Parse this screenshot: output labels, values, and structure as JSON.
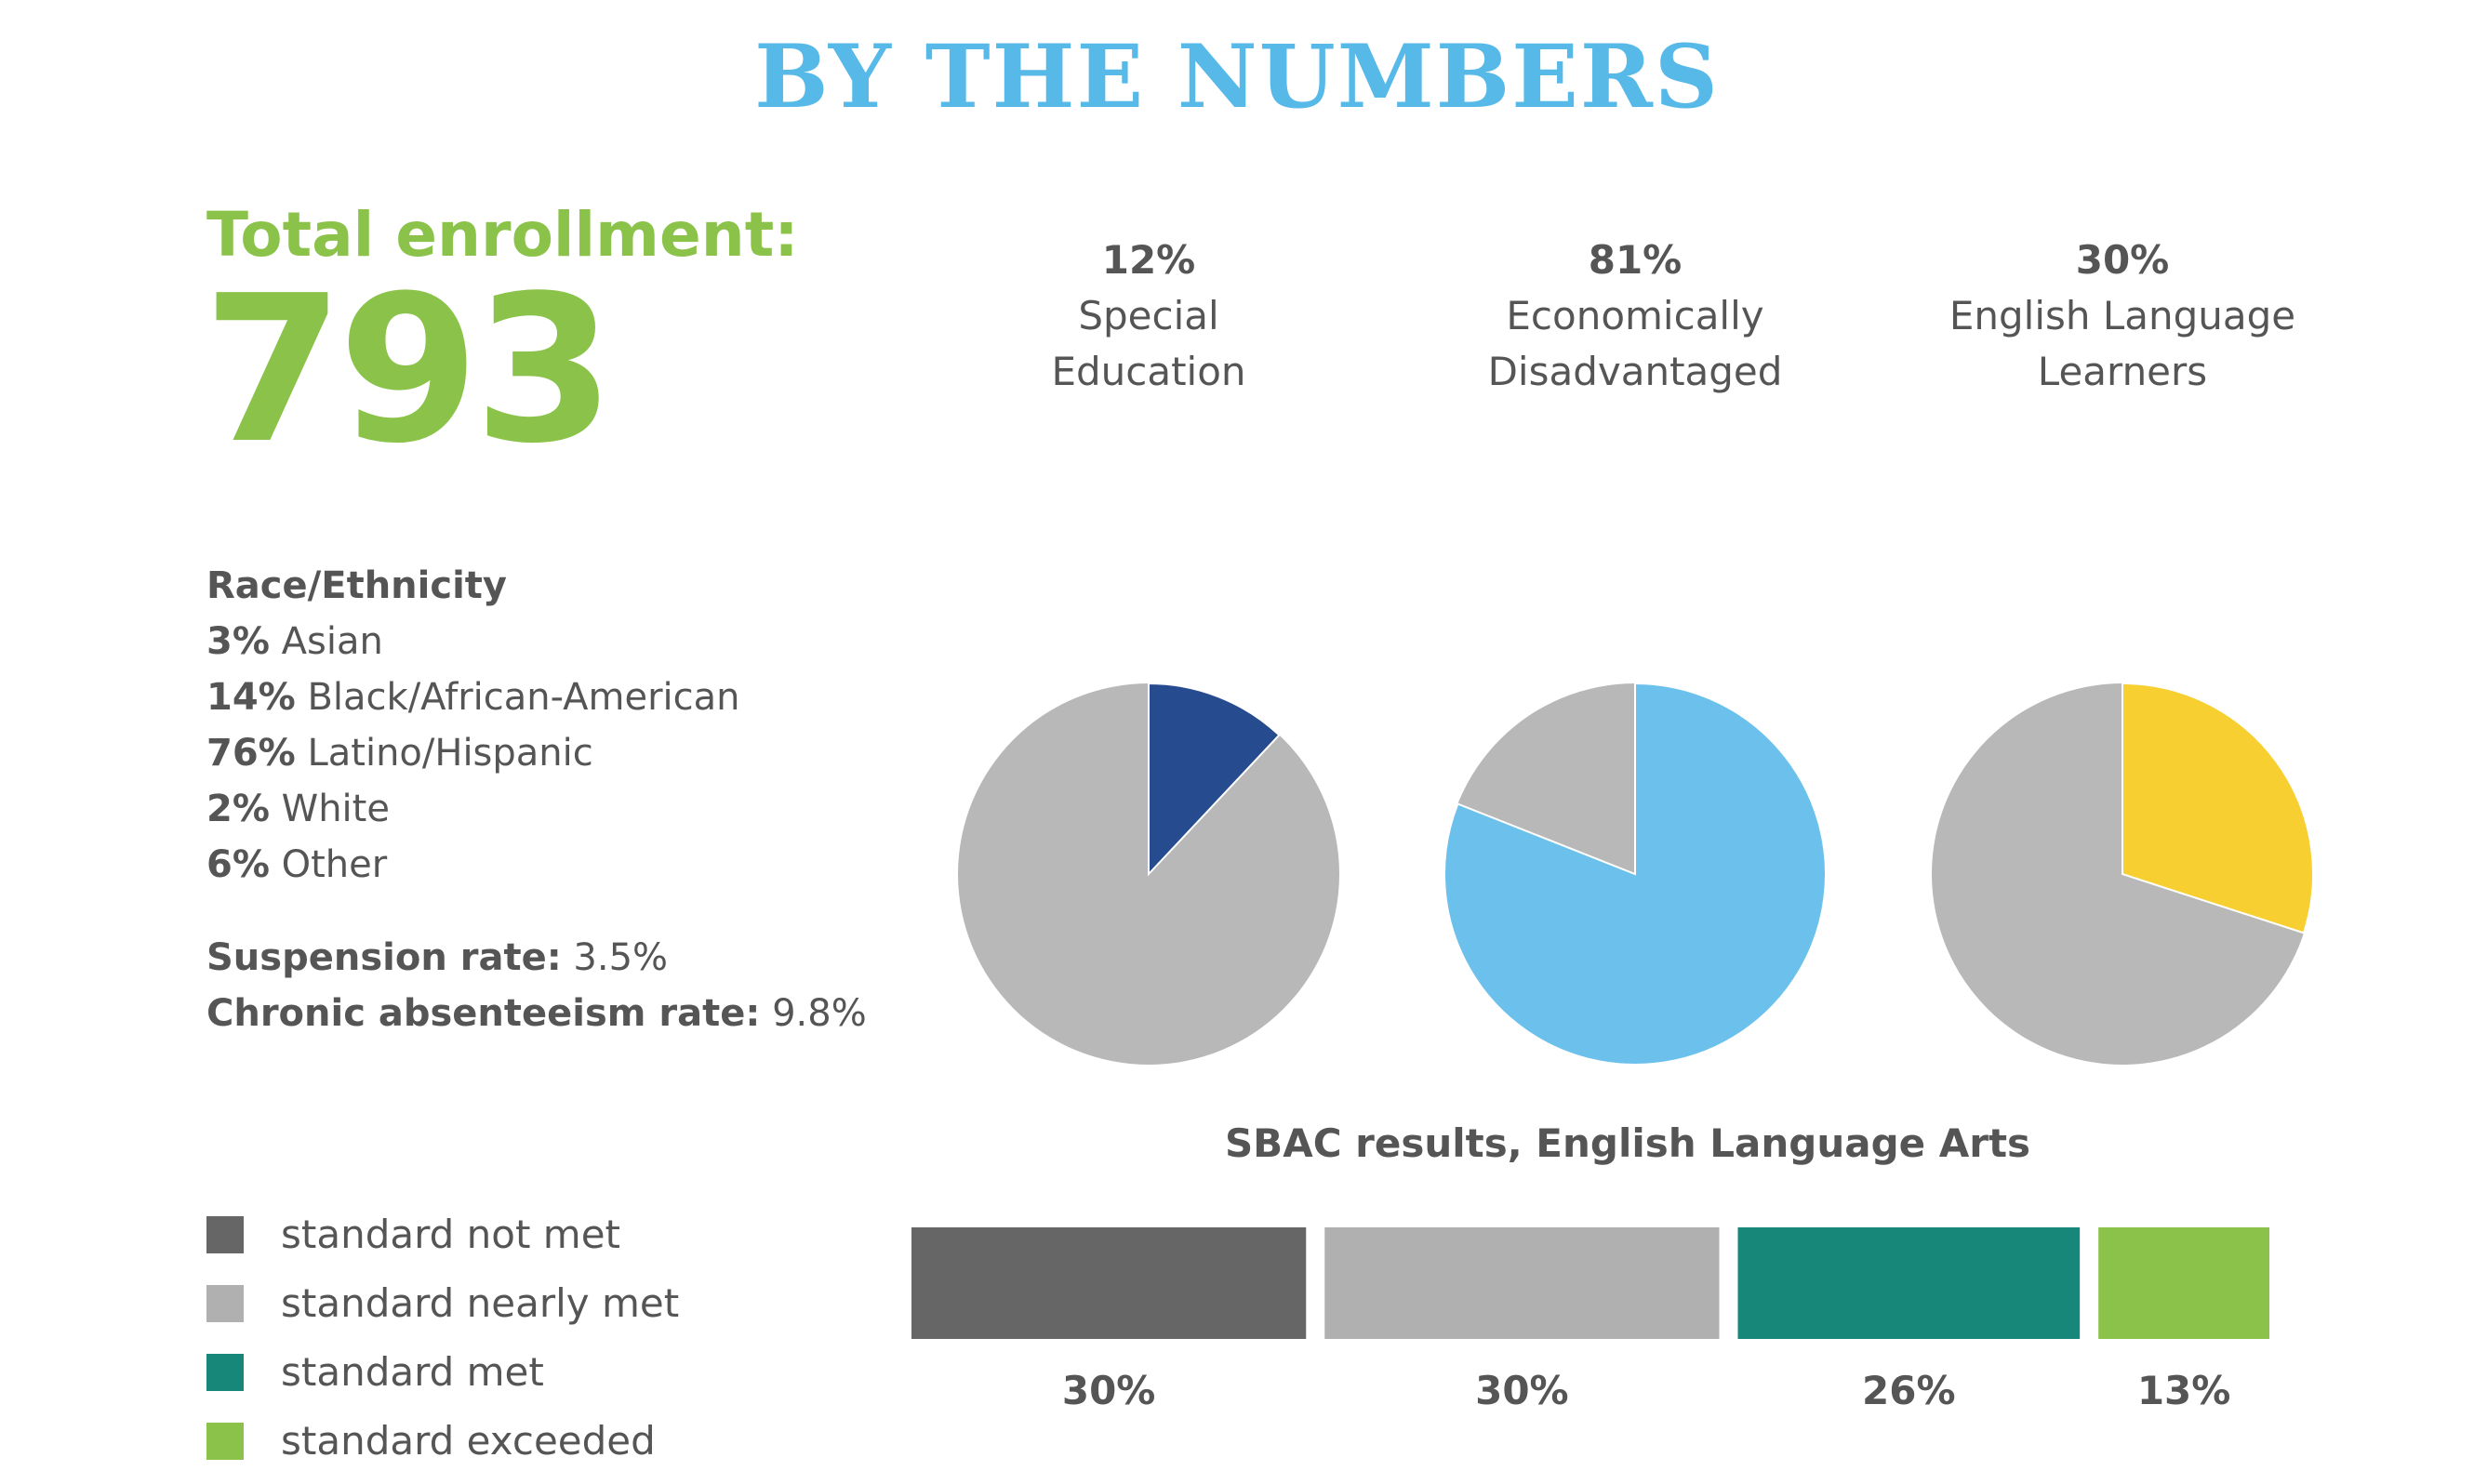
{
  "page": {
    "title": "BY THE NUMBERS"
  },
  "enrollment": {
    "label": "Total enrollment:",
    "value": "793"
  },
  "race": {
    "heading": "Race/Ethnicity",
    "items": [
      {
        "pct": "3%",
        "label": "Asian"
      },
      {
        "pct": "14%",
        "label": "Black/African-American"
      },
      {
        "pct": "76%",
        "label": "Latino/Hispanic"
      },
      {
        "pct": "2%",
        "label": "White"
      },
      {
        "pct": "6%",
        "label": "Other"
      }
    ]
  },
  "rates": {
    "suspension_label": "Suspension rate:",
    "suspension_value": "3.5%",
    "absentee_label": "Chronic absenteeism rate:",
    "absentee_value": "9.8%"
  },
  "chart_data": [
    {
      "type": "pie",
      "pct_label": "12%",
      "label": "Special\nEducation",
      "value": 12,
      "color": "#274b8f",
      "rest_color": "#b8b8b8"
    },
    {
      "type": "pie",
      "pct_label": "81%",
      "label": "Economically\nDisadvantaged",
      "value": 81,
      "color": "#6cc1ec",
      "rest_color": "#b8b8b8"
    },
    {
      "type": "pie",
      "pct_label": "30%",
      "label": "English Language\nLearners",
      "value": 30,
      "color": "#f7cf30",
      "rest_color": "#b8b8b8"
    },
    {
      "type": "bar",
      "title": "SBAC results, English Language Arts",
      "categories": [
        "standard not met",
        "standard nearly met",
        "standard met",
        "standard exceeded"
      ],
      "values": [
        30,
        30,
        26,
        13
      ],
      "value_labels": [
        "30%",
        "30%",
        "26%",
        "13%"
      ],
      "colors": [
        "#666666",
        "#b0b0b0",
        "#17877a",
        "#8bc34a"
      ]
    }
  ],
  "legend": {
    "items": [
      {
        "label": "standard not met",
        "color": "#666666"
      },
      {
        "label": "standard nearly met",
        "color": "#b0b0b0"
      },
      {
        "label": "standard met",
        "color": "#17877a"
      },
      {
        "label": "standard exceeded",
        "color": "#8bc34a"
      }
    ]
  }
}
